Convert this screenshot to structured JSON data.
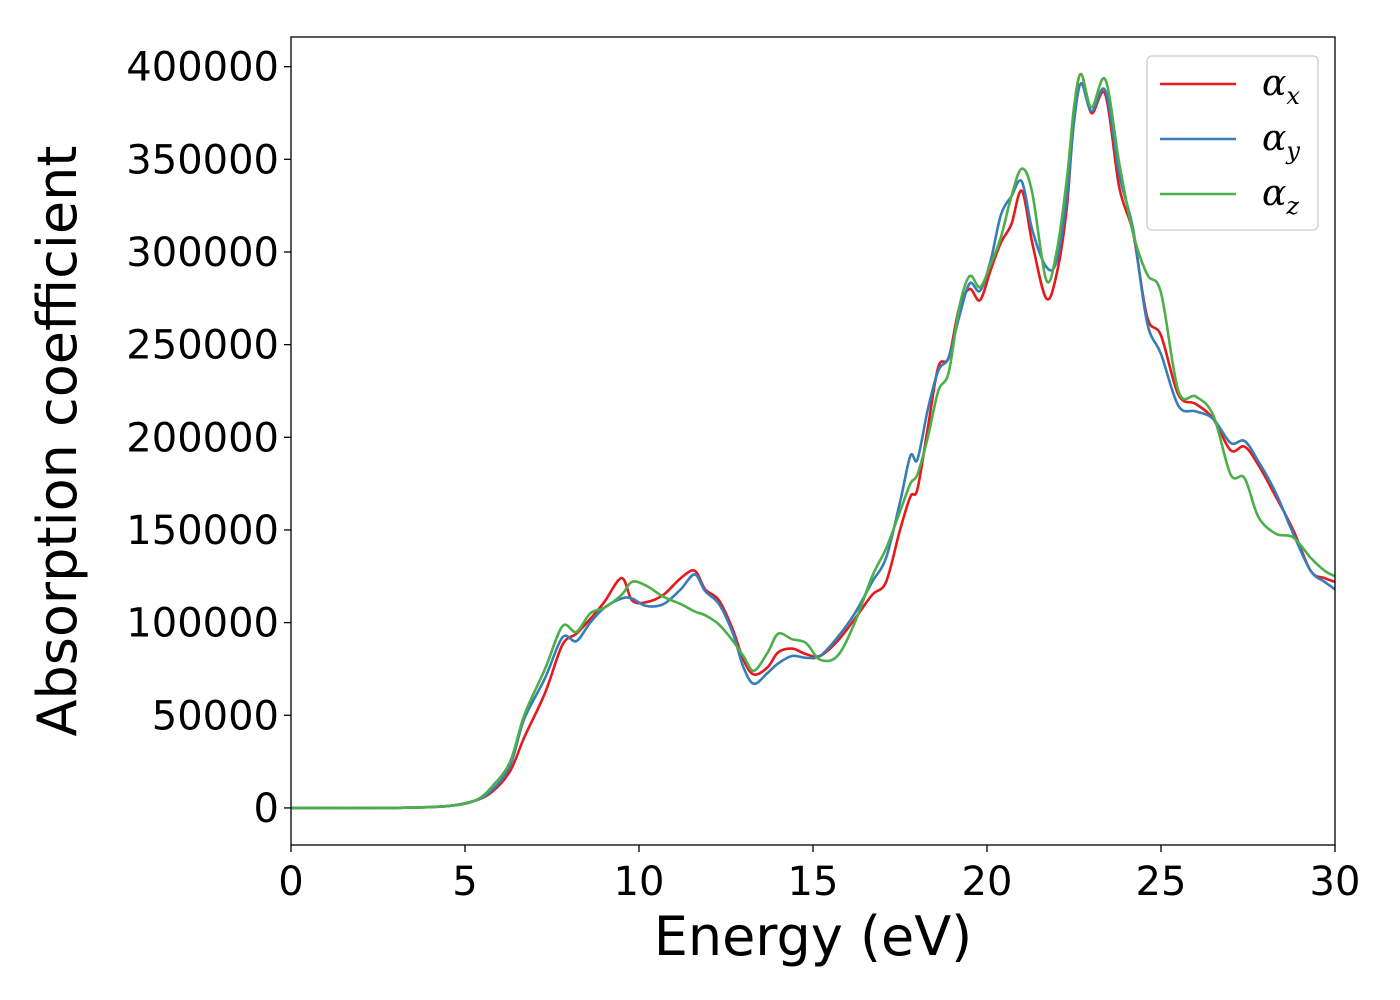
{
  "chart_data": {
    "type": "line",
    "xlabel": "Energy (eV)",
    "ylabel": "Absorption coefficient",
    "xlim": [
      0,
      30
    ],
    "ylim": [
      -20000,
      416000
    ],
    "xticks": [
      0,
      5,
      10,
      15,
      20,
      25,
      30
    ],
    "yticks": [
      0,
      50000,
      100000,
      150000,
      200000,
      250000,
      300000,
      350000,
      400000
    ],
    "grid": false,
    "legend_position": "top-right",
    "series": [
      {
        "name": "α_x",
        "symbol": "α",
        "subscript": "x",
        "color": "#e41a1c",
        "x": [
          0,
          3,
          4.5,
          5.3,
          5.8,
          6.3,
          6.7,
          7.3,
          7.8,
          8.2,
          8.6,
          9.0,
          9.5,
          9.8,
          10.2,
          10.7,
          11.2,
          11.6,
          11.9,
          12.3,
          12.7,
          13.0,
          13.3,
          13.7,
          14.0,
          14.4,
          14.8,
          15.2,
          15.7,
          16.2,
          16.7,
          17.1,
          17.5,
          17.8,
          18.0,
          18.3,
          18.6,
          18.9,
          19.2,
          19.5,
          19.8,
          20.1,
          20.4,
          20.7,
          21.0,
          21.3,
          21.7,
          22.0,
          22.3,
          22.5,
          22.7,
          23.0,
          23.4,
          23.8,
          24.2,
          24.6,
          25.0,
          25.5,
          26.0,
          26.5,
          27.0,
          27.4,
          27.8,
          28.3,
          28.8,
          29.3,
          29.7,
          30.0
        ],
        "y": [
          0,
          0,
          1000,
          4000,
          9000,
          20000,
          38000,
          62000,
          88000,
          94000,
          102000,
          111000,
          124000,
          112000,
          111000,
          115000,
          124000,
          128000,
          118000,
          112000,
          96000,
          80000,
          72000,
          76000,
          84000,
          86000,
          83000,
          82000,
          90000,
          102000,
          115000,
          122000,
          150000,
          168000,
          172000,
          205000,
          238000,
          243000,
          270000,
          280000,
          274000,
          290000,
          305000,
          315000,
          333000,
          305000,
          275000,
          288000,
          325000,
          375000,
          396000,
          375000,
          385000,
          335000,
          310000,
          265000,
          255000,
          223000,
          218000,
          210000,
          193000,
          195000,
          185000,
          168000,
          150000,
          128000,
          124000,
          122000
        ]
      },
      {
        "name": "α_y",
        "symbol": "α",
        "subscript": "y",
        "color": "#377eb8",
        "x": [
          0,
          3,
          4.5,
          5.3,
          5.8,
          6.3,
          6.7,
          7.3,
          7.8,
          8.2,
          8.6,
          9.0,
          9.5,
          9.8,
          10.2,
          10.7,
          11.2,
          11.6,
          11.9,
          12.3,
          12.7,
          13.0,
          13.3,
          13.7,
          14.0,
          14.4,
          14.8,
          15.2,
          15.7,
          16.2,
          16.7,
          17.1,
          17.5,
          17.8,
          18.0,
          18.3,
          18.6,
          18.9,
          19.2,
          19.5,
          19.8,
          20.1,
          20.4,
          20.7,
          21.0,
          21.3,
          21.7,
          22.0,
          22.3,
          22.5,
          22.7,
          23.0,
          23.4,
          23.8,
          24.2,
          24.6,
          25.0,
          25.5,
          26.0,
          26.5,
          27.0,
          27.4,
          27.8,
          28.3,
          28.8,
          29.3,
          29.7,
          30.0
        ],
        "y": [
          0,
          0,
          1000,
          4000,
          10000,
          23000,
          48000,
          70000,
          92000,
          90000,
          100000,
          108000,
          113000,
          113000,
          109000,
          110000,
          118000,
          126000,
          117000,
          110000,
          94000,
          76000,
          67000,
          73000,
          78000,
          82000,
          81000,
          82000,
          92000,
          105000,
          122000,
          135000,
          165000,
          190000,
          188000,
          215000,
          236000,
          243000,
          265000,
          283000,
          279000,
          295000,
          320000,
          330000,
          338000,
          312000,
          292000,
          295000,
          330000,
          370000,
          391000,
          376000,
          387000,
          342000,
          312000,
          262000,
          245000,
          217000,
          214000,
          210000,
          197000,
          198000,
          187000,
          170000,
          148000,
          128000,
          122000,
          118000
        ]
      },
      {
        "name": "α_z",
        "symbol": "α",
        "subscript": "z",
        "color": "#4daf4a",
        "x": [
          0,
          3,
          4.5,
          5.3,
          5.8,
          6.3,
          6.7,
          7.3,
          7.8,
          8.2,
          8.6,
          9.0,
          9.5,
          9.8,
          10.2,
          10.7,
          11.2,
          11.6,
          11.9,
          12.3,
          12.7,
          13.0,
          13.3,
          13.7,
          14.0,
          14.4,
          14.8,
          15.2,
          15.7,
          16.2,
          16.7,
          17.1,
          17.5,
          17.8,
          18.0,
          18.3,
          18.6,
          18.9,
          19.2,
          19.5,
          19.8,
          20.1,
          20.4,
          20.7,
          21.0,
          21.3,
          21.7,
          22.0,
          22.3,
          22.5,
          22.7,
          23.0,
          23.4,
          23.8,
          24.2,
          24.6,
          25.0,
          25.5,
          26.0,
          26.5,
          27.0,
          27.4,
          27.8,
          28.3,
          28.8,
          29.3,
          29.7,
          30.0
        ],
        "y": [
          0,
          0,
          1000,
          4000,
          12000,
          25000,
          50000,
          75000,
          98000,
          95000,
          105000,
          108000,
          115000,
          122000,
          120000,
          114000,
          110000,
          106000,
          104000,
          99000,
          90000,
          82000,
          74000,
          84000,
          94000,
          91000,
          89000,
          80000,
          82000,
          100000,
          125000,
          140000,
          160000,
          175000,
          180000,
          200000,
          225000,
          235000,
          270000,
          287000,
          281000,
          293000,
          308000,
          330000,
          345000,
          332000,
          285000,
          300000,
          340000,
          378000,
          396000,
          378000,
          393000,
          348000,
          310000,
          288000,
          278000,
          225000,
          222000,
          212000,
          180000,
          178000,
          157000,
          148000,
          146000,
          135000,
          128000,
          125000
        ]
      }
    ]
  }
}
